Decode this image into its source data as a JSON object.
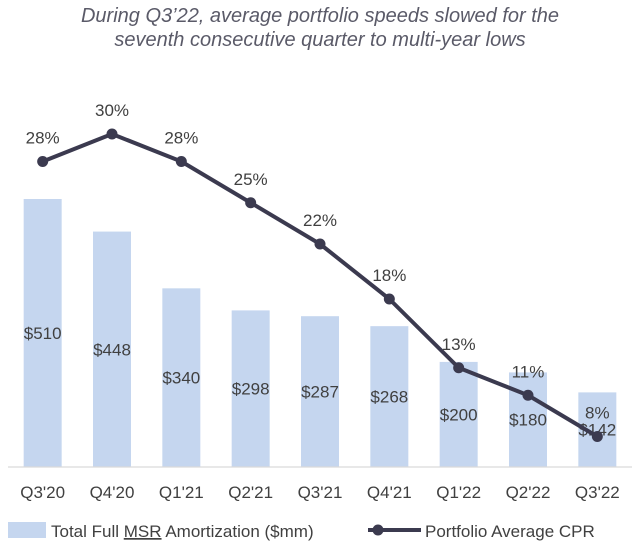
{
  "title": {
    "line1": "During Q3’22, average portfolio speeds slowed for the",
    "line2": "seventh consecutive quarter to multi-year lows"
  },
  "chart_data": {
    "type": "bar",
    "categories": [
      "Q3'20",
      "Q4'20",
      "Q1'21",
      "Q2'21",
      "Q3'21",
      "Q4'21",
      "Q1'22",
      "Q2'22",
      "Q3'22"
    ],
    "series": [
      {
        "name": "Total Full MSR Amortization ($mm)",
        "type": "bar",
        "values": [
          510,
          448,
          340,
          298,
          287,
          268,
          200,
          180,
          142
        ],
        "labels": [
          "$510",
          "$448",
          "$340",
          "$298",
          "$287",
          "$268",
          "$200",
          "$180",
          "$142"
        ],
        "color": "#c5d6ef"
      },
      {
        "name": "Portfolio Average CPR",
        "type": "line",
        "values": [
          28,
          30,
          28,
          25,
          22,
          18,
          13,
          11,
          8
        ],
        "labels": [
          "28%",
          "30%",
          "28%",
          "25%",
          "22%",
          "18%",
          "13%",
          "11%",
          "8%"
        ],
        "color": "#3b3a4f"
      }
    ],
    "legend": {
      "position": "bottom",
      "bar_label_prefix": "Total Full ",
      "bar_label_underlined": "MSR",
      "bar_label_suffix": " Amortization ($mm)",
      "line_label": "Portfolio Average CPR"
    },
    "grid": false
  }
}
